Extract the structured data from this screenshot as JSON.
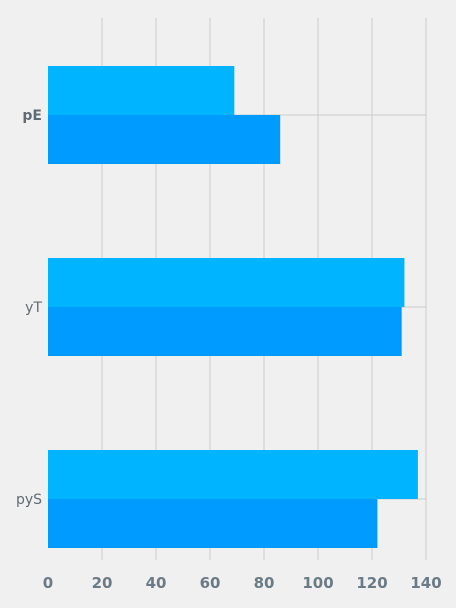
{
  "chart_data": {
    "type": "bar",
    "orientation": "horizontal",
    "categories": [
      "pE",
      "yT",
      "pyS"
    ],
    "bold_categories": [
      "pE"
    ],
    "series": [
      {
        "values": [
          69,
          132,
          137
        ],
        "color": "#00b4ff"
      },
      {
        "values": [
          86,
          131,
          122
        ],
        "color": "#009bff"
      }
    ],
    "xlim": [
      0,
      140
    ],
    "xticks": [
      0,
      20,
      40,
      60,
      80,
      100,
      120,
      140
    ],
    "grid": true,
    "legend": "none",
    "title": "",
    "xlabel": "",
    "ylabel": ""
  }
}
